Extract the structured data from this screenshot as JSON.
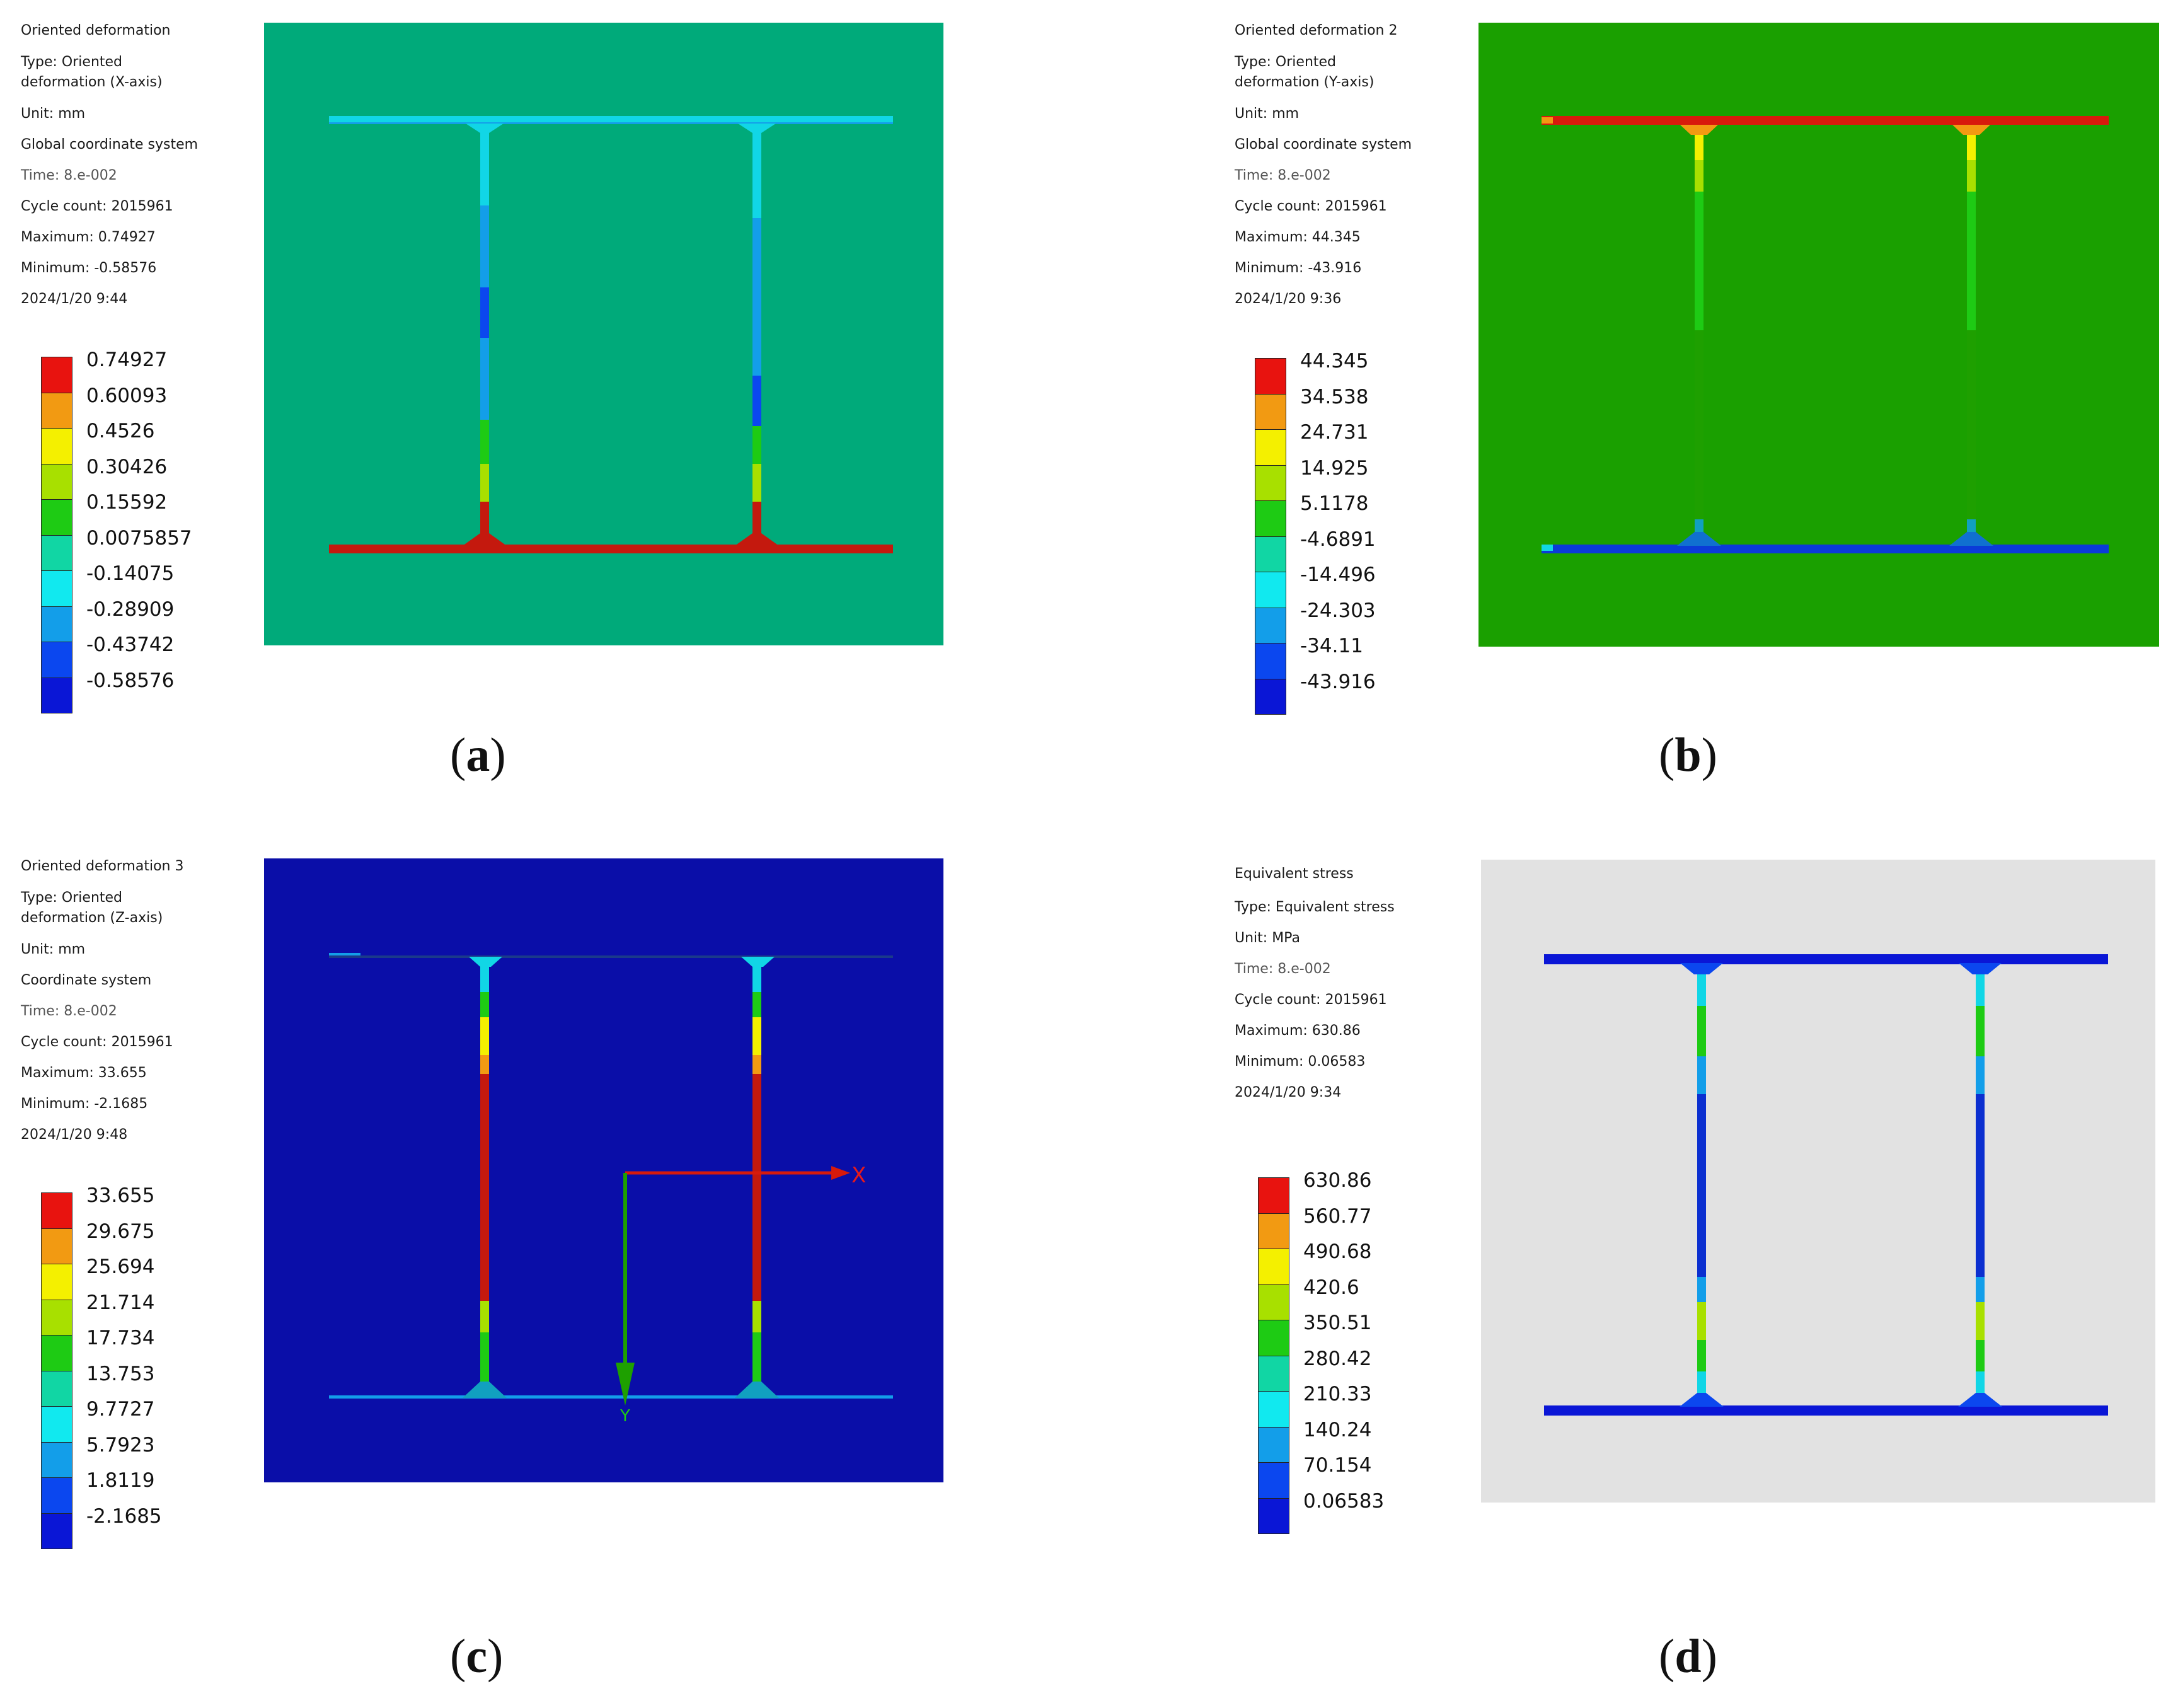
{
  "panels": [
    {
      "id": "a",
      "caption_letter": "a",
      "info": {
        "title": "Oriented deformation",
        "type_line1": "Type: Oriented",
        "type_line2": "deformation (X-axis)",
        "unit": "Unit: mm",
        "coords": "Global coordinate system",
        "time": "Time: 8.e-002",
        "cycle": "Cycle count: 2015961",
        "max": "Maximum: 0.74927",
        "min": "Minimum: -0.58576",
        "date": "2024/1/20 9:44"
      },
      "legend": [
        "0.74927",
        "0.60093",
        "0.4526",
        "0.30426",
        "0.15592",
        "0.0075857",
        "-0.14075",
        "-0.28909",
        "-0.43742",
        "-0.58576"
      ],
      "background": "#00aa7a"
    },
    {
      "id": "b",
      "caption_letter": "b",
      "info": {
        "title": "Oriented deformation 2",
        "type_line1": "Type: Oriented",
        "type_line2": "deformation (Y-axis)",
        "unit": "Unit: mm",
        "coords": "Global coordinate system",
        "time": "Time: 8.e-002",
        "cycle": "Cycle count: 2015961",
        "max": "Maximum: 44.345",
        "min": "Minimum: -43.916",
        "date": "2024/1/20 9:36"
      },
      "legend": [
        "44.345",
        "34.538",
        "24.731",
        "14.925",
        "5.1178",
        "-4.6891",
        "-14.496",
        "-24.303",
        "-34.11",
        "-43.916"
      ],
      "background": "#1aa000"
    },
    {
      "id": "c",
      "caption_letter": "c",
      "info": {
        "title": "Oriented deformation 3",
        "type_line1": "Type: Oriented",
        "type_line2": "deformation (Z-axis)",
        "unit": "Unit: mm",
        "coords": "Coordinate system",
        "time": "Time: 8.e-002",
        "cycle": "Cycle count: 2015961",
        "max": "Maximum: 33.655",
        "min": "Minimum: -2.1685",
        "date": "2024/1/20 9:48"
      },
      "legend": [
        "33.655",
        "29.675",
        "25.694",
        "21.714",
        "17.734",
        "13.753",
        "9.7727",
        "5.7923",
        "1.8119",
        "-2.1685"
      ],
      "background": "#0a0ea8",
      "axis_labels": {
        "x": "X",
        "y": "Y"
      }
    },
    {
      "id": "d",
      "caption_letter": "d",
      "info": {
        "title": "Equivalent stress",
        "type_line1": "Type: Equivalent stress",
        "unit": "Unit: MPa",
        "time": "Time: 8.e-002",
        "cycle": "Cycle count: 2015961",
        "max": "Maximum: 630.86",
        "min": "Minimum: 0.06583",
        "date": "2024/1/20 9:34"
      },
      "legend": [
        "630.86",
        "560.77",
        "490.68",
        "420.6",
        "350.51",
        "280.42",
        "210.33",
        "140.24",
        "70.154",
        "0.06583"
      ],
      "background": "#e2e2e2"
    }
  ],
  "colors": {
    "scale": [
      "#e8130f",
      "#f29a12",
      "#f4f000",
      "#a8e000",
      "#1ecb14",
      "#11d6a4",
      "#11e9ef",
      "#139ee9",
      "#0b47ef",
      "#0a16d6"
    ]
  }
}
